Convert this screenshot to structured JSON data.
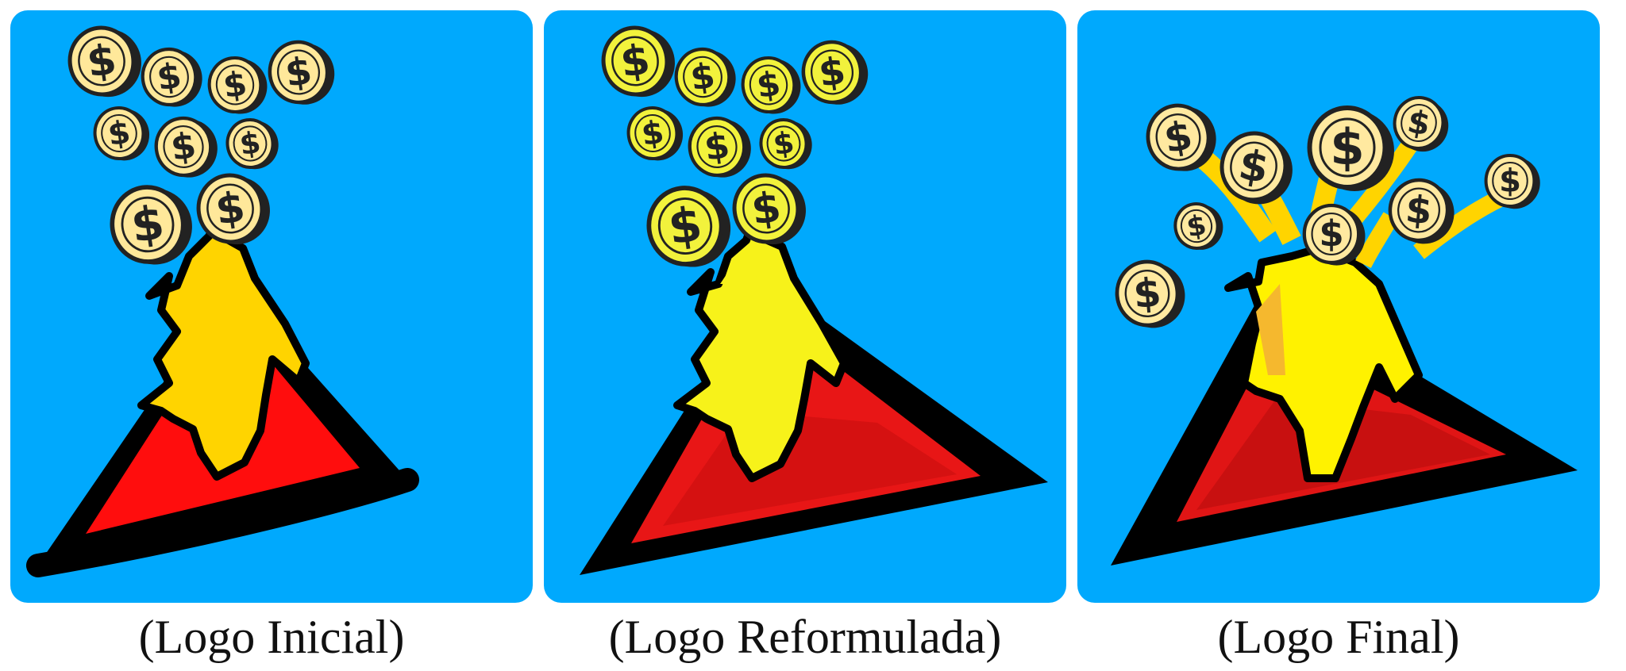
{
  "panels": [
    {
      "id": "inicial",
      "caption": "(Logo Inicial)",
      "colors": {
        "background": "#00A9FD",
        "volcano": "#FF0D0D",
        "lava": "#FFD400",
        "coin": "#FFE89A",
        "outline": "#000000"
      }
    },
    {
      "id": "reformulada",
      "caption": "(Logo Reformulada)",
      "colors": {
        "background": "#00A9FD",
        "volcano": "#E81616",
        "lava": "#F7F21A",
        "coin": "#F2F23C",
        "outline": "#000000"
      }
    },
    {
      "id": "final",
      "caption": "(Logo Final)",
      "colors": {
        "background": "#00A9FD",
        "volcano": "#E01515",
        "lava": "#FFF200",
        "coin": "#FFE9A0",
        "outline": "#000000"
      }
    }
  ],
  "coin_symbol": "$",
  "icons": [
    "coin-icon",
    "volcano-icon",
    "lava-icon"
  ]
}
